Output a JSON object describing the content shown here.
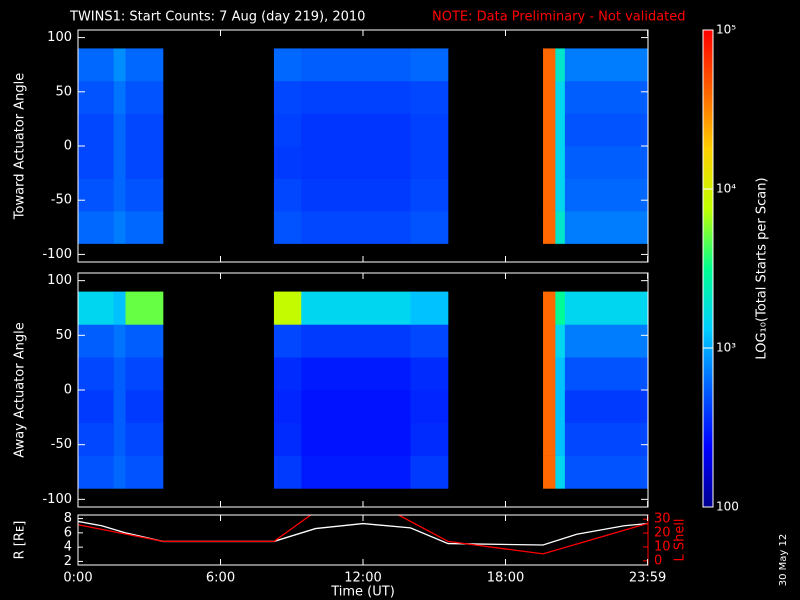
{
  "chart_data": {
    "type": "heatmap",
    "title": "TWINS1: Start Counts:  7 Aug (day 219), 2010",
    "note": "NOTE: Data Preliminary - Not validated",
    "xlabel": "Time (UT)",
    "xlim": [
      0,
      24
    ],
    "xticks": [
      {
        "value": 0,
        "label": "0:00"
      },
      {
        "value": 6,
        "label": "6:00"
      },
      {
        "value": 12,
        "label": "12:00"
      },
      {
        "value": 18,
        "label": "18:00"
      },
      {
        "value": 23.983,
        "label": "23:59"
      }
    ],
    "time_edges": [
      0,
      1.5,
      2,
      3.58,
      8.25,
      9.4,
      14,
      15.58,
      19.58,
      20.1,
      20.5,
      24
    ],
    "panels": [
      {
        "ylabel": "Toward Actuator Angle",
        "ylim": [
          -107,
          107
        ],
        "yticks": [
          -100,
          -50,
          0,
          50,
          100
        ],
        "angle_edges": [
          -90,
          -60,
          -30,
          0,
          30,
          60,
          90
        ],
        "values": [
          [
            600,
            700,
            600,
            null,
            500,
            450,
            500,
            null,
            40000,
            2000,
            700
          ],
          [
            500,
            600,
            500,
            null,
            450,
            400,
            450,
            null,
            40000,
            1500,
            600
          ],
          [
            450,
            600,
            450,
            null,
            400,
            380,
            420,
            null,
            40000,
            1500,
            550
          ],
          [
            450,
            600,
            450,
            null,
            420,
            380,
            420,
            null,
            40000,
            1500,
            500
          ],
          [
            500,
            650,
            500,
            null,
            450,
            420,
            450,
            null,
            40000,
            1500,
            550
          ],
          [
            600,
            800,
            600,
            null,
            600,
            550,
            600,
            null,
            40000,
            2000,
            700
          ]
        ]
      },
      {
        "ylabel": "Away Actuator Angle",
        "ylim": [
          -107,
          107
        ],
        "yticks": [
          -100,
          -50,
          0,
          50,
          100
        ],
        "angle_edges": [
          -90,
          -60,
          -30,
          0,
          30,
          60,
          90
        ],
        "values": [
          [
            500,
            600,
            500,
            null,
            400,
            300,
            400,
            null,
            40000,
            1500,
            500
          ],
          [
            450,
            550,
            450,
            null,
            350,
            280,
            350,
            null,
            40000,
            1200,
            450
          ],
          [
            400,
            550,
            400,
            null,
            330,
            280,
            330,
            null,
            40000,
            1200,
            400
          ],
          [
            450,
            550,
            450,
            null,
            350,
            300,
            350,
            null,
            40000,
            1200,
            500
          ],
          [
            550,
            650,
            550,
            null,
            450,
            400,
            450,
            null,
            40000,
            1500,
            700
          ],
          [
            1500,
            1200,
            5000,
            null,
            8000,
            1500,
            1200,
            null,
            40000,
            3000,
            1500
          ]
        ]
      }
    ],
    "colorbar": {
      "label": "LOG₁₀(Total Starts per Scan)",
      "log": true,
      "lim": [
        100,
        100000
      ],
      "ticks": [
        {
          "value": 100,
          "label": "100"
        },
        {
          "value": 1000,
          "label": "10³"
        },
        {
          "value": 10000,
          "label": "10⁴"
        },
        {
          "value": 100000,
          "label": "10⁵"
        }
      ],
      "colormap": [
        "#000090",
        "#0000ff",
        "#0060ff",
        "#00d0ff",
        "#00ff90",
        "#c0ff00",
        "#ffd000",
        "#ff6000",
        "#ff0000"
      ]
    },
    "lines": {
      "type": "line",
      "ylabel": "R [Rᴇ]",
      "y2label": "L Shell",
      "ylim": [
        1.5,
        8.5
      ],
      "yticks": [
        2,
        4,
        6,
        8
      ],
      "y2lim": [
        -3,
        33
      ],
      "y2ticks": [
        0,
        10,
        20,
        30
      ],
      "series": [
        {
          "name": "R",
          "color": "#ffffff",
          "x": [
            0,
            1,
            2,
            3.58,
            8.25,
            10,
            12,
            14,
            15.58,
            19.58,
            21,
            23,
            24
          ],
          "values": [
            7.6,
            7,
            6,
            4.8,
            4.8,
            6.6,
            7.3,
            6.7,
            4.5,
            4.3,
            5.8,
            7,
            7.3
          ]
        },
        {
          "name": "L Shell",
          "color": "#ff0000",
          "axis": "y2",
          "x": [
            0,
            3.58,
            8.25,
            9.8,
            10.5,
            13.5,
            15.58,
            19.58,
            24
          ],
          "values": [
            26,
            14,
            14,
            33,
            null,
            33,
            14,
            5,
            27
          ]
        }
      ]
    },
    "footer": "30 May 12"
  }
}
